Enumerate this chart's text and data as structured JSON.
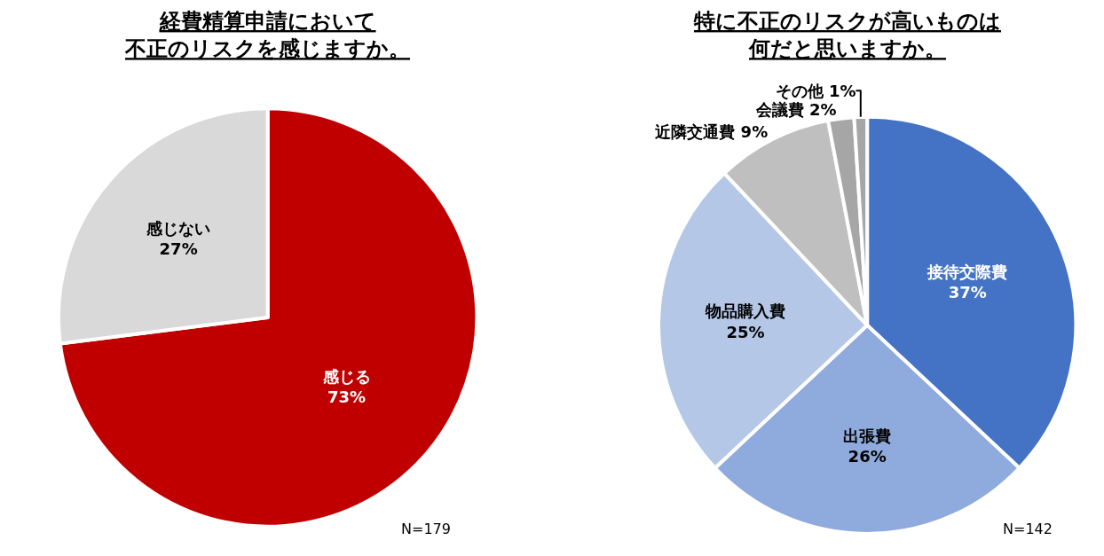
{
  "chart_data": [
    {
      "type": "pie",
      "title": [
        "経費精算申請において",
        "不正のリスクを感じますか。"
      ],
      "categories": [
        "感じる",
        "感じない"
      ],
      "values": [
        73,
        27
      ],
      "colors": [
        "#c00000",
        "#d9d9d9"
      ],
      "value_labels": [
        "73%",
        "27%"
      ],
      "annotations": [
        "N=179"
      ]
    },
    {
      "type": "pie",
      "title": [
        "特に不正のリスクが高いものは",
        "何だと思いますか。"
      ],
      "categories": [
        "接待交際費",
        "出張費",
        "物品購入費",
        "近隣交通費",
        "会議費",
        "その他"
      ],
      "values": [
        37,
        26,
        25,
        9,
        2,
        1
      ],
      "colors": [
        "#4472c4",
        "#8faadc",
        "#b4c7e7",
        "#bfbfbf",
        "#a6a6a6",
        "#a6a6a6"
      ],
      "value_labels": [
        "37%",
        "26%",
        "25%",
        "9%",
        "2%",
        "1%"
      ],
      "annotations": [
        "N=142"
      ]
    }
  ]
}
